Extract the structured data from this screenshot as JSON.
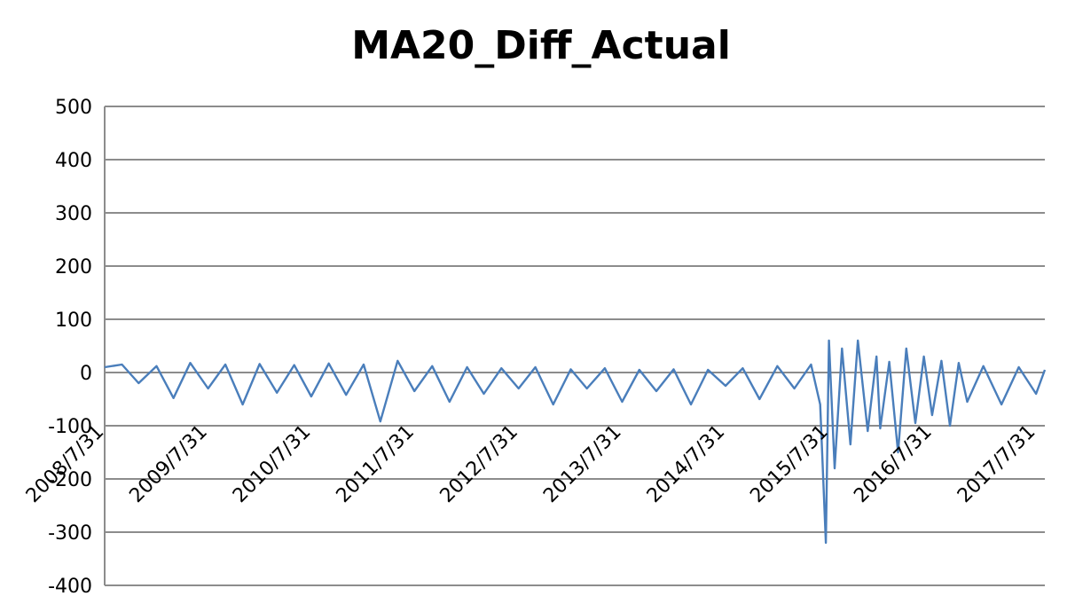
{
  "chart_data": {
    "type": "line",
    "title": "MA20_Diff_Actual",
    "xlabel": "",
    "ylabel": "",
    "ylim": [
      -400,
      500
    ],
    "yticks": [
      500,
      400,
      300,
      200,
      100,
      0,
      -100,
      -200,
      -300,
      -400
    ],
    "xlim": [
      "2008/7/31",
      "2017/8/31"
    ],
    "xtick_labels": [
      "2008/7/31",
      "2009/7/31",
      "2010/7/31",
      "2011/7/31",
      "2012/7/31",
      "2013/7/31",
      "2014/7/31",
      "2015/7/31",
      "2016/7/31",
      "2017/7/31"
    ],
    "grid": true,
    "legend": "none",
    "series_color": "#4a7ebb",
    "series": [
      {
        "points": [
          [
            "2008/7/31",
            10
          ],
          [
            "2008/9/30",
            15
          ],
          [
            "2008/11/28",
            -20
          ],
          [
            "2009/1/30",
            12
          ],
          [
            "2009/3/31",
            -48
          ],
          [
            "2009/5/29",
            18
          ],
          [
            "2009/7/31",
            -30
          ],
          [
            "2009/9/30",
            15
          ],
          [
            "2009/11/30",
            -60
          ],
          [
            "2010/1/29",
            16
          ],
          [
            "2010/3/31",
            -38
          ],
          [
            "2010/5/31",
            14
          ],
          [
            "2010/7/30",
            -45
          ],
          [
            "2010/9/30",
            17
          ],
          [
            "2010/11/30",
            -42
          ],
          [
            "2011/1/31",
            15
          ],
          [
            "2011/3/31",
            -92
          ],
          [
            "2011/5/31",
            22
          ],
          [
            "2011/7/29",
            -35
          ],
          [
            "2011/9/30",
            12
          ],
          [
            "2011/11/30",
            -55
          ],
          [
            "2012/1/31",
            10
          ],
          [
            "2012/3/30",
            -40
          ],
          [
            "2012/5/31",
            8
          ],
          [
            "2012/7/31",
            -30
          ],
          [
            "2012/9/28",
            10
          ],
          [
            "2012/11/30",
            -60
          ],
          [
            "2013/1/31",
            6
          ],
          [
            "2013/3/29",
            -30
          ],
          [
            "2013/5/31",
            8
          ],
          [
            "2013/7/31",
            -55
          ],
          [
            "2013/9/30",
            5
          ],
          [
            "2013/11/29",
            -35
          ],
          [
            "2014/1/29",
            6
          ],
          [
            "2014/3/31",
            -60
          ],
          [
            "2014/5/30",
            5
          ],
          [
            "2014/7/31",
            -25
          ],
          [
            "2014/9/30",
            8
          ],
          [
            "2014/11/28",
            -50
          ],
          [
            "2015/1/30",
            12
          ],
          [
            "2015/3/31",
            -30
          ],
          [
            "2015/5/29",
            15
          ],
          [
            "2015/6/30",
            -60
          ],
          [
            "2015/7/20",
            -320
          ],
          [
            "2015/7/31",
            60
          ],
          [
            "2015/8/20",
            -180
          ],
          [
            "2015/9/15",
            45
          ],
          [
            "2015/10/15",
            -135
          ],
          [
            "2015/11/10",
            60
          ],
          [
            "2015/12/15",
            -110
          ],
          [
            "2016/1/15",
            30
          ],
          [
            "2016/1/28",
            -105
          ],
          [
            "2016/2/29",
            20
          ],
          [
            "2016/3/31",
            -150
          ],
          [
            "2016/4/29",
            45
          ],
          [
            "2016/5/31",
            -95
          ],
          [
            "2016/6/30",
            30
          ],
          [
            "2016/7/29",
            -80
          ],
          [
            "2016/8/31",
            22
          ],
          [
            "2016/9/30",
            -100
          ],
          [
            "2016/10/31",
            18
          ],
          [
            "2016/11/30",
            -55
          ],
          [
            "2017/1/26",
            12
          ],
          [
            "2017/3/31",
            -60
          ],
          [
            "2017/5/31",
            10
          ],
          [
            "2017/7/31",
            -40
          ],
          [
            "2017/8/31",
            5
          ]
        ]
      }
    ]
  }
}
